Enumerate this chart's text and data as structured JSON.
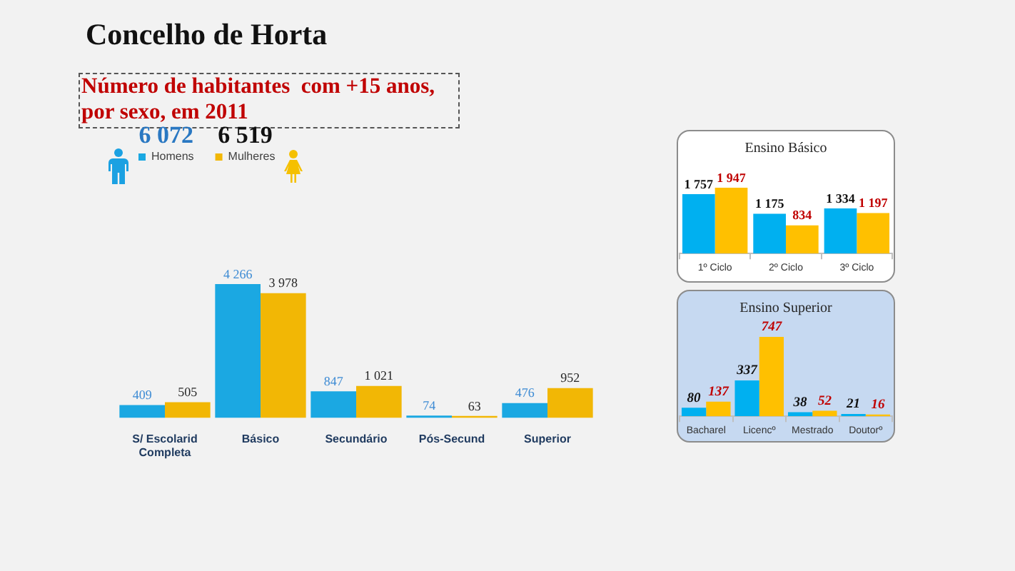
{
  "chart_data": [
    {
      "type": "bar",
      "title": "Concelho de Horta",
      "subtitle": "Número de habitantes  com +15 anos, por sexo, em 2011",
      "categories": [
        "S/ Escolarid Completa",
        "Básico",
        "Secundário",
        "Pós-Secund",
        "Superior"
      ],
      "series": [
        {
          "name": "Homens",
          "color": "#1ba8e2",
          "values": [
            409,
            4266,
            847,
            74,
            476
          ],
          "value_labels": [
            "409",
            "4 266",
            "847",
            "74",
            "476"
          ]
        },
        {
          "name": "Mulheres",
          "color": "#f2b705",
          "values": [
            505,
            3978,
            1021,
            63,
            952
          ],
          "value_labels": [
            "505",
            "3 978",
            "1 021",
            "63",
            "952"
          ]
        }
      ],
      "annotations": [
        "6 072",
        "6 519"
      ],
      "legend": "top left",
      "tick_labels": "x"
    },
    {
      "type": "bar",
      "title": "Ensino Básico",
      "categories": [
        "1º Ciclo",
        "2º Ciclo",
        "3º Ciclo"
      ],
      "series": [
        {
          "color": "#00b0f0",
          "values": [
            1757,
            1175,
            1334
          ],
          "value_labels": [
            "1 757",
            "1 175",
            "1 334"
          ]
        },
        {
          "color": "#ffc000",
          "values": [
            1947,
            834,
            1197
          ],
          "value_labels": [
            "1 947",
            "834",
            "1 197"
          ]
        }
      ],
      "tick_labels": "x"
    },
    {
      "type": "bar",
      "title": "Ensino Superior",
      "categories": [
        "Bacharel",
        "Licencº",
        "Mestrado",
        "Doutorº"
      ],
      "series": [
        {
          "color": "#00b0f0",
          "values": [
            80,
            337,
            38,
            21
          ],
          "value_labels": [
            "80",
            "337",
            "38",
            "21"
          ]
        },
        {
          "color": "#ffc000",
          "values": [
            137,
            747,
            52,
            16
          ],
          "value_labels": [
            "137",
            "747",
            "52",
            "16"
          ]
        }
      ],
      "tick_labels": "x"
    }
  ]
}
